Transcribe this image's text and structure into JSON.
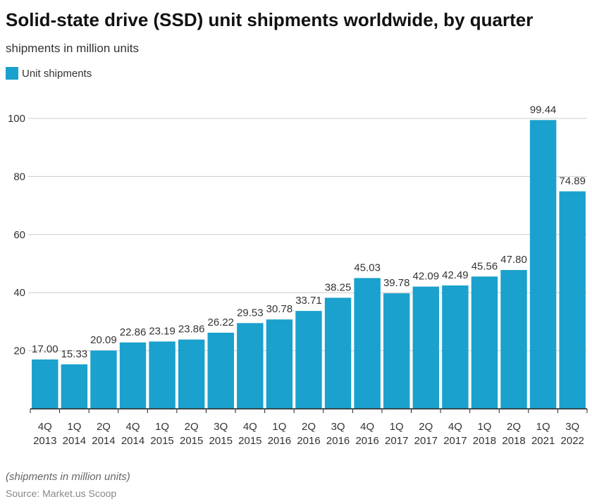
{
  "chart_data": {
    "type": "bar",
    "title": "Solid-state drive (SSD) unit shipments worldwide, by quarter",
    "subtitle": "shipments in million units",
    "categories": [
      [
        "4Q",
        "2013"
      ],
      [
        "1Q",
        "2014"
      ],
      [
        "2Q",
        "2014"
      ],
      [
        "4Q",
        "2014"
      ],
      [
        "1Q",
        "2015"
      ],
      [
        "2Q",
        "2015"
      ],
      [
        "3Q",
        "2015"
      ],
      [
        "4Q",
        "2015"
      ],
      [
        "1Q",
        "2016"
      ],
      [
        "2Q",
        "2016"
      ],
      [
        "3Q",
        "2016"
      ],
      [
        "4Q",
        "2016"
      ],
      [
        "1Q",
        "2017"
      ],
      [
        "2Q",
        "2017"
      ],
      [
        "4Q",
        "2017"
      ],
      [
        "1Q",
        "2018"
      ],
      [
        "2Q",
        "2018"
      ],
      [
        "1Q",
        "2021"
      ],
      [
        "3Q",
        "2022"
      ]
    ],
    "series": [
      {
        "name": "Unit shipments",
        "color": "#1aa1cd",
        "values": [
          17,
          15.33,
          20.09,
          22.86,
          23.19,
          23.86,
          26.22,
          29.53,
          30.78,
          33.71,
          38.25,
          45.03,
          39.78,
          42.09,
          42.49,
          45.56,
          47.8,
          99.44,
          74.89
        ],
        "value_labels": [
          "17.00",
          "15.33",
          "20.09",
          "22.86",
          "23.19",
          "23.86",
          "26.22",
          "29.53",
          "30.78",
          "33.71",
          "38.25",
          "45.03",
          "39.78",
          "42.09",
          "42.49",
          "45.56",
          "47.80",
          "99.44",
          "74.89"
        ]
      }
    ],
    "ylim": [
      0,
      100
    ],
    "yticks": [
      20,
      40,
      60,
      80,
      100
    ],
    "grid": true,
    "footnote": "(shipments in million units)",
    "source": "Source: Market.us Scoop"
  }
}
